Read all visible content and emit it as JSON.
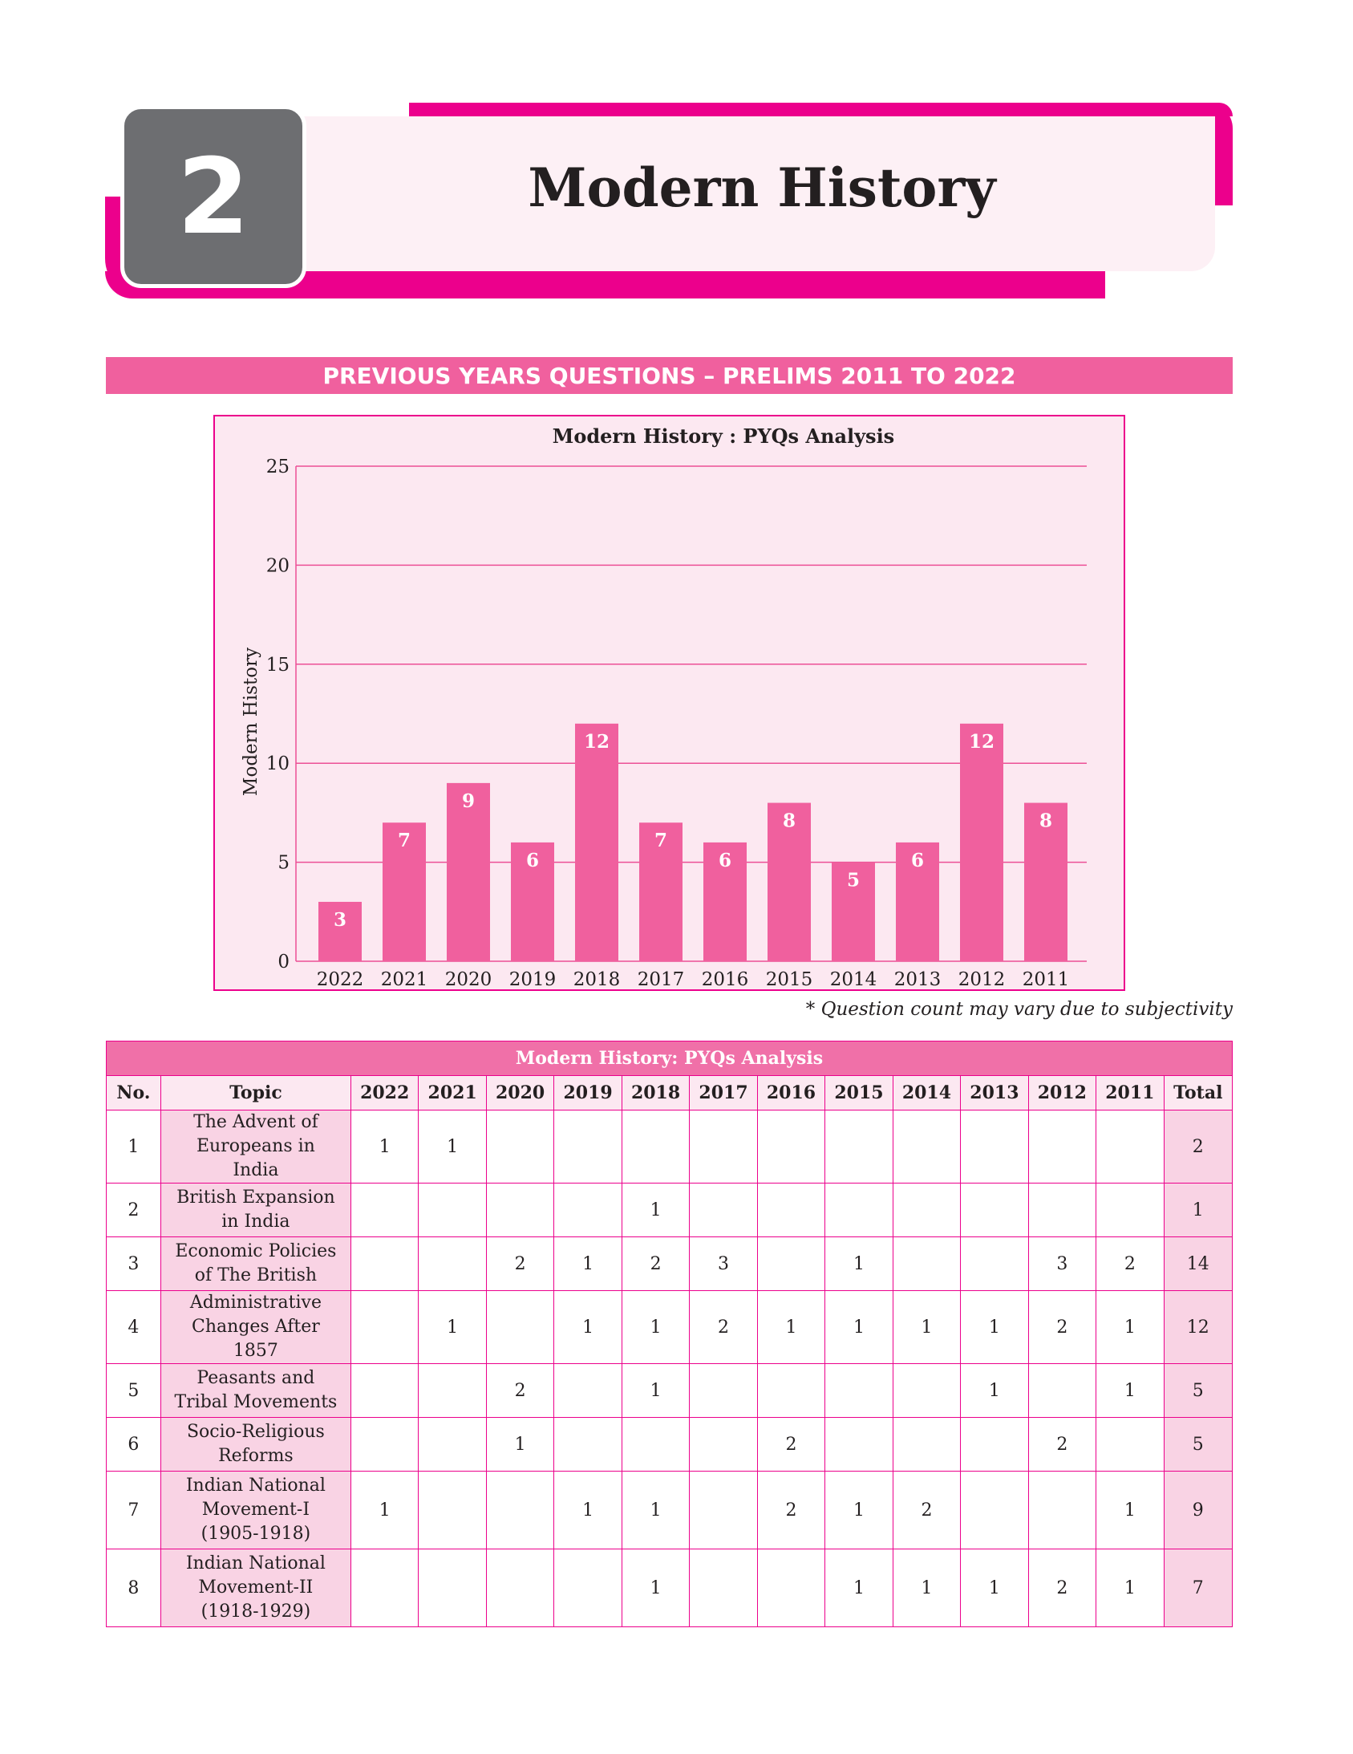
{
  "chapter": {
    "number": "2",
    "title": "Modern History"
  },
  "banner": "PREVIOUS YEARS QUESTIONS – PRELIMS 2011 TO 2022",
  "colors": {
    "accent": "#ec008c",
    "bar": "#f0609e",
    "chart_bg": "#fce8f1",
    "chapter_box": "#6d6e71"
  },
  "chart_data": {
    "type": "bar",
    "title": "Modern History : PYQs Analysis",
    "xlabel": "",
    "ylabel": "Modern History",
    "categories": [
      "2022",
      "2021",
      "2020",
      "2019",
      "2018",
      "2017",
      "2016",
      "2015",
      "2014",
      "2013",
      "2012",
      "2011"
    ],
    "values": [
      3,
      7,
      9,
      6,
      12,
      7,
      6,
      8,
      5,
      6,
      12,
      8
    ],
    "ylim": [
      0,
      25
    ],
    "yticks": [
      0,
      5,
      10,
      15,
      20,
      25
    ],
    "grid": true,
    "data_labels": true
  },
  "footnote": "* Question count may vary due to subjectivity",
  "table": {
    "title": "Modern History: PYQs Analysis",
    "headers": [
      "No.",
      "Topic",
      "2022",
      "2021",
      "2020",
      "2019",
      "2018",
      "2017",
      "2016",
      "2015",
      "2014",
      "2013",
      "2012",
      "2011",
      "Total"
    ],
    "rows": [
      [
        "1",
        "The Advent of Europeans in India",
        "1",
        "1",
        "",
        "",
        "",
        "",
        "",
        "",
        "",
        "",
        "",
        "",
        "2"
      ],
      [
        "2",
        "British Expansion in India",
        "",
        "",
        "",
        "",
        "1",
        "",
        "",
        "",
        "",
        "",
        "",
        "",
        "1"
      ],
      [
        "3",
        "Economic Policies of The British",
        "",
        "",
        "2",
        "1",
        "2",
        "3",
        "",
        "1",
        "",
        "",
        "3",
        "2",
        "14"
      ],
      [
        "4",
        "Administrative Changes After 1857",
        "",
        "1",
        "",
        "1",
        "1",
        "2",
        "1",
        "1",
        "1",
        "1",
        "2",
        "1",
        "12"
      ],
      [
        "5",
        "Peasants and Tribal Movements",
        "",
        "",
        "2",
        "",
        "1",
        "",
        "",
        "",
        "",
        "1",
        "",
        "1",
        "5"
      ],
      [
        "6",
        "Socio-Religious Reforms",
        "",
        "",
        "1",
        "",
        "",
        "",
        "2",
        "",
        "",
        "",
        "2",
        "",
        "5"
      ],
      [
        "7",
        "Indian National Movement-I (1905-1918)",
        "1",
        "",
        "",
        "1",
        "1",
        "",
        "2",
        "1",
        "2",
        "",
        "",
        "1",
        "9"
      ],
      [
        "8",
        "Indian National Movement-II (1918-1929)",
        "",
        "",
        "",
        "",
        "1",
        "",
        "",
        "1",
        "1",
        "1",
        "2",
        "1",
        "7"
      ]
    ]
  }
}
